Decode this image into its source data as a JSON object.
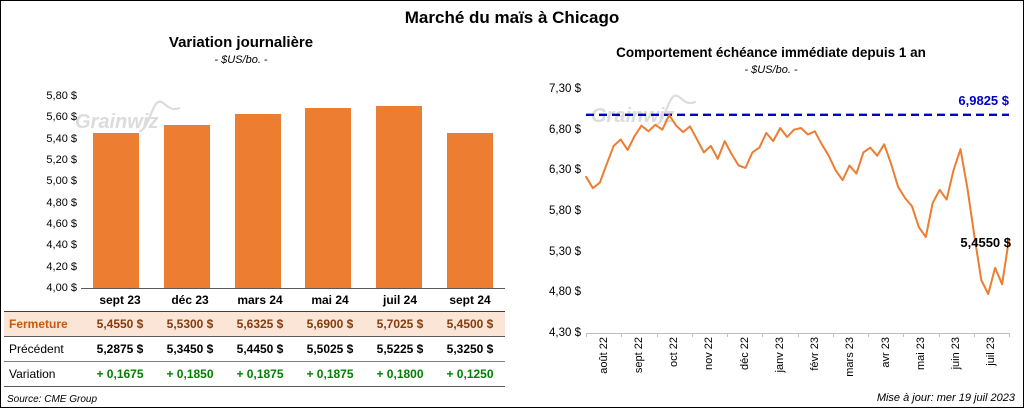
{
  "page": {
    "title": "Marché du maïs à Chicago",
    "watermark": "Grainwiz",
    "source": "Source: CME Group",
    "updated": "Mise à jour: mer 19 juil 2023"
  },
  "table": {
    "rows": [
      {
        "type": "fermeture",
        "label": "Fermeture",
        "cells": [
          "5,4550 $",
          "5,5300 $",
          "5,6325 $",
          "5,6900 $",
          "5,7025 $",
          "5,4500 $"
        ]
      },
      {
        "type": "precedent",
        "label": "Précédent",
        "cells": [
          "5,2875 $",
          "5,3450 $",
          "5,4450 $",
          "5,5025 $",
          "5,5225 $",
          "5,3250 $"
        ]
      },
      {
        "type": "variation",
        "label": "Variation",
        "cells": [
          "+ 0,1675",
          "+ 0,1850",
          "+ 0,1875",
          "+ 0,1875",
          "+ 0,1800",
          "+ 0,1250"
        ]
      }
    ]
  },
  "chart_data": [
    {
      "type": "bar",
      "title": "Variation journalière",
      "subtitle": "- $US/bo. -",
      "categories": [
        "sept 23",
        "déc 23",
        "mars 24",
        "mai 24",
        "juil 24",
        "sept 24"
      ],
      "values": [
        5.455,
        5.53,
        5.6325,
        5.69,
        5.7025,
        5.45
      ],
      "ylim": [
        4.0,
        5.8
      ],
      "yticks": [
        {
          "v": 5.8,
          "label": "5,80 $"
        },
        {
          "v": 5.6,
          "label": "5,60 $"
        },
        {
          "v": 5.4,
          "label": "5,40 $"
        },
        {
          "v": 5.2,
          "label": "5,20 $"
        },
        {
          "v": 5.0,
          "label": "5,00 $"
        },
        {
          "v": 4.8,
          "label": "4,80 $"
        },
        {
          "v": 4.6,
          "label": "4,60 $"
        },
        {
          "v": 4.4,
          "label": "4,40 $"
        },
        {
          "v": 4.2,
          "label": "4,20 $"
        },
        {
          "v": 4.0,
          "label": "4,00 $"
        }
      ],
      "bar_color": "#ED7D31",
      "grid": false,
      "legend": "none"
    },
    {
      "type": "line",
      "title": "Comportement échéance immédiate depuis 1 an",
      "subtitle": "- $US/bo. -",
      "x_labels": [
        "août 22",
        "sept 22",
        "oct 22",
        "nov 22",
        "déc 22",
        "janv 23",
        "févr 23",
        "mars 23",
        "avr 23",
        "mai 23",
        "juin 23",
        "juil 23"
      ],
      "values": [
        6.22,
        6.08,
        6.15,
        6.38,
        6.6,
        6.68,
        6.55,
        6.72,
        6.85,
        6.78,
        6.86,
        6.8,
        6.98,
        6.85,
        6.77,
        6.84,
        6.68,
        6.52,
        6.6,
        6.44,
        6.66,
        6.5,
        6.36,
        6.33,
        6.52,
        6.58,
        6.76,
        6.66,
        6.82,
        6.71,
        6.8,
        6.82,
        6.74,
        6.78,
        6.62,
        6.48,
        6.3,
        6.18,
        6.36,
        6.26,
        6.52,
        6.58,
        6.48,
        6.62,
        6.38,
        6.1,
        5.96,
        5.86,
        5.6,
        5.48,
        5.9,
        6.06,
        5.94,
        6.3,
        6.56,
        6.08,
        5.5,
        4.95,
        4.78,
        5.1,
        4.9,
        5.455
      ],
      "ylim": [
        4.3,
        7.3
      ],
      "yticks": [
        {
          "v": 7.3,
          "label": "7,30 $"
        },
        {
          "v": 6.8,
          "label": "6,80 $"
        },
        {
          "v": 6.3,
          "label": "6,30 $"
        },
        {
          "v": 5.8,
          "label": "5,80 $"
        },
        {
          "v": 5.3,
          "label": "5,30 $"
        },
        {
          "v": 4.8,
          "label": "4,80 $"
        },
        {
          "v": 4.3,
          "label": "4,30 $"
        }
      ],
      "line_color": "#ED7D31",
      "reference_line": {
        "value": 6.9825,
        "label": "6,9825 $",
        "color": "#0000CC",
        "style": "dashed"
      },
      "last_point_label": "5,4550 $",
      "grid": false,
      "legend": "none"
    }
  ]
}
